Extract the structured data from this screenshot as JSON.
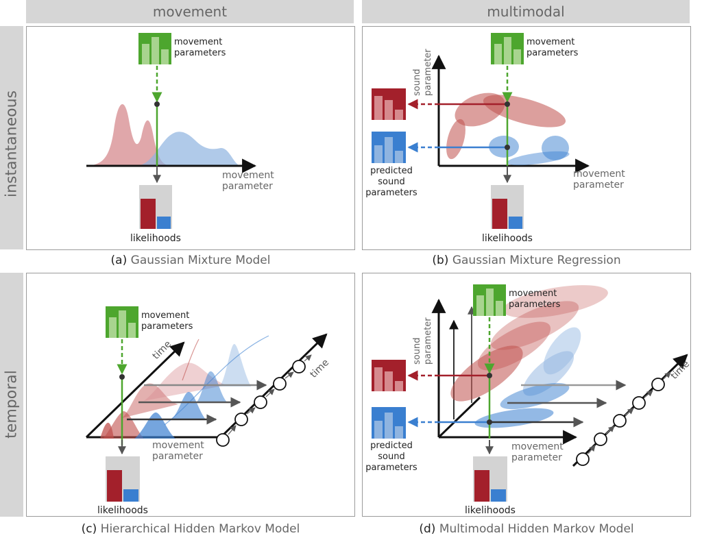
{
  "columns": {
    "left": "movement",
    "right": "multimodal"
  },
  "rows": {
    "top": "instantaneous",
    "bottom": "temporal"
  },
  "labels": {
    "movement_parameters_l1": "movement",
    "movement_parameters_l2": "parameters",
    "movement_parameter_l1": "movement",
    "movement_parameter_l2": "parameter",
    "sound_parameter_l1": "sound",
    "sound_parameter_l2": "parameter",
    "predicted_l1": "predicted",
    "predicted_l2": "sound",
    "predicted_l3": "parameters",
    "likelihoods": "likelihoods",
    "time": "time"
  },
  "captions": {
    "a": {
      "tag": "(a)",
      "text": "Gaussian Mixture Model"
    },
    "b": {
      "tag": "(b)",
      "text": "Gaussian Mixture Regression"
    },
    "c": {
      "tag": "(c)",
      "text": "Hierarchical Hidden Markov Model"
    },
    "d": {
      "tag": "(d)",
      "text": "Multimodal Hidden Markov Model"
    }
  },
  "colors": {
    "green": "#4da62e",
    "green_light": "#a8d48f",
    "red": "#c0504d",
    "red_dark": "#a3202b",
    "red_fill": "#d68a8e",
    "blue": "#3a7fd0",
    "blue_fill": "#8fb4e0",
    "gray_box": "#d3d3d3",
    "axis": "#111111"
  }
}
